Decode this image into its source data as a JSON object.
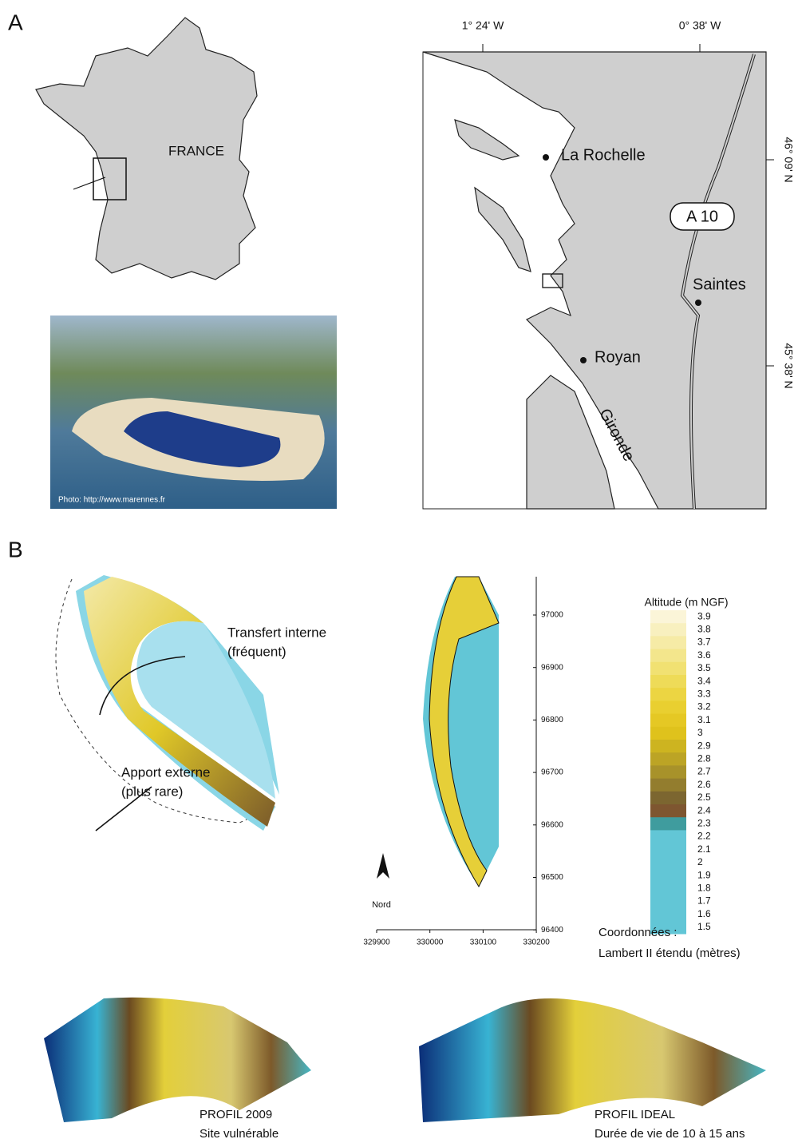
{
  "panel_a": {
    "label": "A",
    "france_label": "FRANCE",
    "photo_credit": "Photo: http://www.marennes.fr",
    "longitudes": [
      "1° 24' W",
      "0° 38' W"
    ],
    "latitudes": [
      "46° 09' N",
      "45° 38' N"
    ],
    "places": [
      "La Rochelle",
      "Saintes",
      "Royan"
    ],
    "road": "A 10",
    "river": "Gironde"
  },
  "panel_b": {
    "label": "B",
    "annotations": [
      "Transfert interne",
      "(fréquent)",
      "Apport externe",
      "(plus rare)"
    ],
    "north": "Nord",
    "map_yticks": [
      "97000",
      "96900",
      "96800",
      "96700",
      "96600",
      "96500",
      "96400"
    ],
    "map_xticks": [
      "329900",
      "330000",
      "330100",
      "330200"
    ],
    "legend_title": "Altitude (m NGF)",
    "legend_labels": [
      "3.9",
      "3.8",
      "3.7",
      "3.6",
      "3.5",
      "3.4",
      "3.3",
      "3.2",
      "3.1",
      "3",
      "2.9",
      "2.8",
      "2.7",
      "2.6",
      "2.5",
      "2.4",
      "2.3",
      "2.2",
      "2.1",
      "2",
      "1.9",
      "1.8",
      "1.7",
      "1.6",
      "1.5"
    ],
    "legend_colors": [
      "#fbf5d8",
      "#f8f0bf",
      "#f6eba6",
      "#f3e68c",
      "#f1e172",
      "#eedb58",
      "#ecd542",
      "#e9cf30",
      "#e5c824",
      "#dfc21c",
      "#cdb420",
      "#bca425",
      "#a8922a",
      "#937d2e",
      "#7c6630",
      "#7e5630",
      "#3f9c9e",
      "#62c6d6",
      "#62c6d6",
      "#62c6d6",
      "#62c6d6",
      "#62c6d6",
      "#62c6d6",
      "#62c6d6",
      "#62c6d6"
    ],
    "coord_note": [
      "Coordonnées :",
      "Lambert II étendu (mètres)"
    ],
    "profiles": [
      {
        "title": "PROFIL 2009",
        "subtitle": "Site vulnérable"
      },
      {
        "title": "PROFIL IDEAL",
        "subtitle": "Durée de vie de 10 à 15 ans"
      }
    ]
  }
}
